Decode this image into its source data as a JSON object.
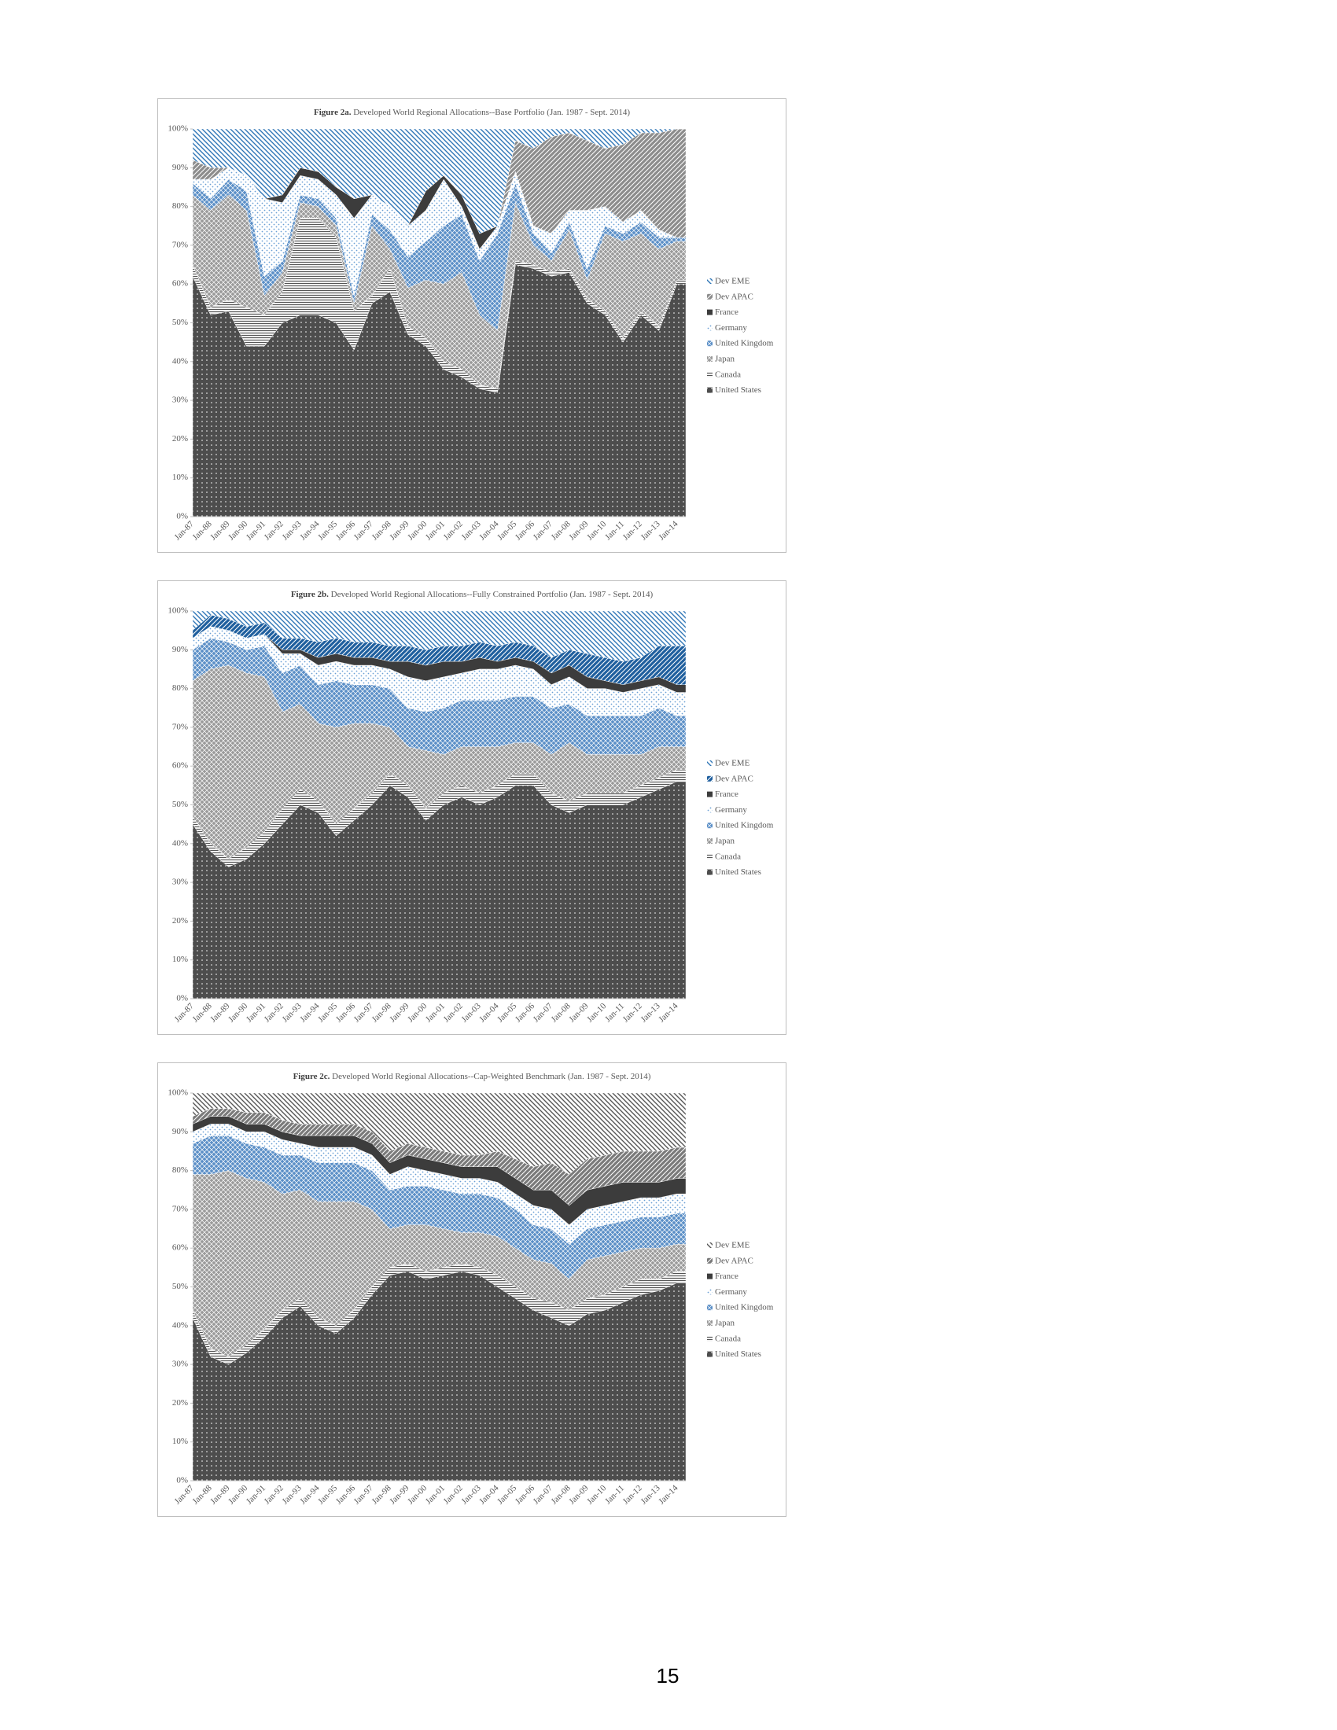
{
  "chart_data": [
    {
      "type": "area",
      "stacked": true,
      "figure": "Figure 2a.",
      "title": "Developed World Regional Allocations--Base Portfolio (Jan. 1987 - Sept. 2014)",
      "categories": [
        "Jan-87",
        "Jan-88",
        "Jan-89",
        "Jan-90",
        "Jan-91",
        "Jan-92",
        "Jan-93",
        "Jan-94",
        "Jan-95",
        "Jan-96",
        "Jan-97",
        "Jan-98",
        "Jan-99",
        "Jan-00",
        "Jan-01",
        "Jan-02",
        "Jan-03",
        "Jan-04",
        "Jan-05",
        "Jan-06",
        "Jan-07",
        "Jan-08",
        "Jan-09",
        "Jan-10",
        "Jan-11",
        "Jan-12",
        "Jan-13",
        "Jan-14"
      ],
      "series": [
        {
          "name": "United States",
          "color": "#4d4d4d",
          "values": [
            62,
            52,
            53,
            44,
            44,
            50,
            52,
            52,
            50,
            43,
            55,
            58,
            47,
            44,
            38,
            36,
            33,
            32,
            65,
            64,
            62,
            63,
            55,
            52,
            45,
            52,
            48,
            60
          ]
        },
        {
          "name": "Canada",
          "color": "#555555",
          "values": [
            3,
            2,
            3,
            10,
            8,
            8,
            25,
            25,
            22,
            10,
            2,
            6,
            2,
            2,
            2,
            2,
            1,
            1,
            1,
            1,
            1,
            1,
            1,
            1,
            1,
            1,
            1,
            1
          ]
        },
        {
          "name": "Japan",
          "color": "#9a9a9a",
          "values": [
            18,
            25,
            27,
            25,
            5,
            5,
            4,
            3,
            3,
            2,
            18,
            5,
            10,
            15,
            20,
            25,
            18,
            15,
            15,
            5,
            3,
            10,
            5,
            20,
            25,
            20,
            20,
            10
          ]
        },
        {
          "name": "United Kingdom",
          "color": "#5b8fc7",
          "values": [
            3,
            3,
            4,
            5,
            5,
            3,
            2,
            2,
            2,
            2,
            3,
            5,
            8,
            10,
            15,
            15,
            14,
            25,
            5,
            3,
            2,
            2,
            3,
            2,
            2,
            3,
            3,
            1
          ]
        },
        {
          "name": "Germany",
          "color": "#6a9fd4",
          "values": [
            1,
            5,
            3,
            4,
            20,
            15,
            5,
            5,
            6,
            20,
            5,
            6,
            8,
            8,
            12,
            2,
            3,
            2,
            3,
            2,
            5,
            3,
            15,
            5,
            3,
            3,
            2,
            0
          ]
        },
        {
          "name": "France",
          "color": "#3c3c3c",
          "values": [
            0,
            0,
            0,
            0,
            0,
            2,
            2,
            2,
            2,
            5,
            0,
            0,
            0,
            5,
            1,
            3,
            4,
            0,
            0,
            0,
            0,
            0,
            0,
            0,
            0,
            0,
            0,
            0
          ]
        },
        {
          "name": "Dev APAC",
          "color": "#8c8c8c",
          "values": [
            5,
            3,
            0,
            0,
            0,
            0,
            0,
            0,
            0,
            0,
            0,
            0,
            0,
            0,
            0,
            0,
            0,
            0,
            8,
            20,
            25,
            20,
            18,
            15,
            20,
            20,
            25,
            28
          ]
        },
        {
          "name": "Dev EME",
          "color": "#2e75b6",
          "values": [
            8,
            10,
            10,
            12,
            18,
            17,
            10,
            11,
            15,
            18,
            17,
            20,
            25,
            16,
            12,
            17,
            27,
            25,
            3,
            5,
            2,
            1,
            3,
            5,
            4,
            1,
            1,
            0
          ]
        }
      ],
      "ylim": [
        0,
        100
      ],
      "yticks": [
        {
          "value": 0,
          "label": "0%"
        },
        {
          "value": 10,
          "label": "10%"
        },
        {
          "value": 20,
          "label": "20%"
        },
        {
          "value": 30,
          "label": "30%"
        },
        {
          "value": 40,
          "label": "40%"
        },
        {
          "value": 50,
          "label": "50%"
        },
        {
          "value": 60,
          "label": "60%"
        },
        {
          "value": 70,
          "label": "70%"
        },
        {
          "value": 80,
          "label": "80%"
        },
        {
          "value": 90,
          "label": "90%"
        },
        {
          "value": 100,
          "label": "100%"
        }
      ]
    },
    {
      "type": "area",
      "stacked": true,
      "figure": "Figure 2b.",
      "title": "Developed World Regional Allocations--Fully Constrained Portfolio (Jan. 1987 - Sept. 2014)",
      "categories": [
        "Jan-87",
        "Jan-88",
        "Jan-89",
        "Jan-90",
        "Jan-91",
        "Jan-92",
        "Jan-93",
        "Jan-94",
        "Jan-95",
        "Jan-96",
        "Jan-97",
        "Jan-98",
        "Jan-99",
        "Jan-00",
        "Jan-01",
        "Jan-02",
        "Jan-03",
        "Jan-04",
        "Jan-05",
        "Jan-06",
        "Jan-07",
        "Jan-08",
        "Jan-09",
        "Jan-10",
        "Jan-11",
        "Jan-12",
        "Jan-13",
        "Jan-14"
      ],
      "series": [
        {
          "name": "United States",
          "color": "#4d4d4d",
          "values": [
            45,
            38,
            34,
            36,
            40,
            45,
            50,
            48,
            42,
            46,
            50,
            55,
            52,
            46,
            50,
            52,
            50,
            52,
            55,
            55,
            50,
            48,
            50,
            50,
            50,
            52,
            54,
            56
          ]
        },
        {
          "name": "Canada",
          "color": "#555555",
          "values": [
            2,
            2,
            2,
            3,
            3,
            4,
            4,
            3,
            3,
            3,
            3,
            3,
            3,
            3,
            3,
            3,
            3,
            3,
            3,
            3,
            3,
            3,
            3,
            3,
            3,
            3,
            3,
            3
          ]
        },
        {
          "name": "Japan",
          "color": "#9a9a9a",
          "values": [
            35,
            45,
            50,
            45,
            40,
            25,
            22,
            20,
            25,
            22,
            18,
            12,
            10,
            15,
            10,
            10,
            12,
            10,
            8,
            8,
            10,
            15,
            10,
            10,
            10,
            8,
            8,
            6
          ]
        },
        {
          "name": "United Kingdom",
          "color": "#5b8fc7",
          "values": [
            8,
            8,
            6,
            6,
            8,
            10,
            10,
            10,
            12,
            10,
            10,
            10,
            10,
            10,
            12,
            12,
            12,
            12,
            12,
            12,
            12,
            10,
            10,
            10,
            10,
            10,
            10,
            8
          ]
        },
        {
          "name": "Germany",
          "color": "#6a9fd4",
          "values": [
            3,
            3,
            3,
            3,
            3,
            5,
            3,
            5,
            5,
            5,
            5,
            5,
            8,
            8,
            8,
            7,
            8,
            8,
            8,
            7,
            6,
            7,
            7,
            7,
            6,
            7,
            6,
            6
          ]
        },
        {
          "name": "France",
          "color": "#3c3c3c",
          "values": [
            0,
            0,
            0,
            0,
            0,
            1,
            1,
            2,
            2,
            2,
            2,
            2,
            4,
            4,
            4,
            3,
            3,
            2,
            2,
            2,
            3,
            3,
            3,
            2,
            2,
            2,
            2,
            2
          ]
        },
        {
          "name": "Dev APAC",
          "color": "#1f5f9e",
          "values": [
            2,
            3,
            3,
            3,
            3,
            3,
            3,
            4,
            4,
            4,
            4,
            4,
            4,
            4,
            4,
            4,
            4,
            4,
            4,
            4,
            4,
            4,
            6,
            6,
            6,
            6,
            8,
            10
          ]
        },
        {
          "name": "Dev EME",
          "color": "#2e75b6",
          "values": [
            5,
            1,
            2,
            4,
            3,
            7,
            7,
            8,
            7,
            8,
            8,
            9,
            9,
            10,
            9,
            9,
            8,
            9,
            8,
            9,
            12,
            10,
            11,
            12,
            13,
            12,
            9,
            9
          ]
        }
      ],
      "ylim": [
        0,
        100
      ],
      "yticks": [
        {
          "value": 0,
          "label": "0%"
        },
        {
          "value": 10,
          "label": "10%"
        },
        {
          "value": 20,
          "label": "20%"
        },
        {
          "value": 30,
          "label": "30%"
        },
        {
          "value": 40,
          "label": "40%"
        },
        {
          "value": 50,
          "label": "50%"
        },
        {
          "value": 60,
          "label": "60%"
        },
        {
          "value": 70,
          "label": "70%"
        },
        {
          "value": 80,
          "label": "80%"
        },
        {
          "value": 90,
          "label": "90%"
        },
        {
          "value": 100,
          "label": "100%"
        }
      ]
    },
    {
      "type": "area",
      "stacked": true,
      "figure": "Figure 2c.",
      "title": "Developed World Regional Allocations--Cap-Weighted Benchmark (Jan. 1987 - Sept. 2014)",
      "categories": [
        "Jan-87",
        "Jan-88",
        "Jan-89",
        "Jan-90",
        "Jan-91",
        "Jan-92",
        "Jan-93",
        "Jan-94",
        "Jan-95",
        "Jan-96",
        "Jan-97",
        "Jan-98",
        "Jan-99",
        "Jan-00",
        "Jan-01",
        "Jan-02",
        "Jan-03",
        "Jan-04",
        "Jan-05",
        "Jan-06",
        "Jan-07",
        "Jan-08",
        "Jan-09",
        "Jan-10",
        "Jan-11",
        "Jan-12",
        "Jan-13",
        "Jan-14"
      ],
      "series": [
        {
          "name": "United States",
          "color": "#4d4d4d",
          "values": [
            42,
            32,
            30,
            33,
            37,
            42,
            45,
            40,
            38,
            42,
            48,
            53,
            54,
            52,
            53,
            54,
            53,
            50,
            47,
            44,
            42,
            40,
            43,
            44,
            46,
            48,
            49,
            51
          ]
        },
        {
          "name": "Canada",
          "color": "#555555",
          "values": [
            2,
            2,
            2,
            2,
            2,
            2,
            2,
            2,
            2,
            2,
            2,
            2,
            2,
            2,
            2,
            2,
            2,
            3,
            3,
            3,
            4,
            4,
            4,
            4,
            4,
            4,
            3,
            3
          ]
        },
        {
          "name": "Japan",
          "color": "#9a9a9a",
          "values": [
            35,
            45,
            48,
            43,
            38,
            30,
            28,
            30,
            32,
            28,
            20,
            10,
            10,
            12,
            10,
            8,
            9,
            10,
            10,
            10,
            10,
            8,
            10,
            10,
            9,
            8,
            8,
            7
          ]
        },
        {
          "name": "United Kingdom",
          "color": "#5b8fc7",
          "values": [
            8,
            10,
            9,
            9,
            9,
            10,
            9,
            10,
            10,
            10,
            10,
            10,
            10,
            10,
            10,
            10,
            10,
            10,
            10,
            9,
            9,
            9,
            8,
            8,
            8,
            8,
            8,
            8
          ]
        },
        {
          "name": "Germany",
          "color": "#6a9fd4",
          "values": [
            3,
            3,
            3,
            3,
            4,
            4,
            3,
            4,
            4,
            4,
            4,
            4,
            5,
            4,
            4,
            4,
            4,
            4,
            4,
            5,
            5,
            5,
            5,
            5,
            5,
            5,
            5,
            5
          ]
        },
        {
          "name": "France",
          "color": "#3c3c3c",
          "values": [
            2,
            2,
            2,
            2,
            2,
            2,
            2,
            3,
            3,
            3,
            3,
            3,
            3,
            3,
            3,
            3,
            3,
            4,
            4,
            4,
            5,
            5,
            5,
            5,
            5,
            4,
            4,
            4
          ]
        },
        {
          "name": "Dev APAC",
          "color": "#7a7a7a",
          "values": [
            2,
            2,
            2,
            3,
            3,
            3,
            3,
            3,
            3,
            3,
            3,
            3,
            3,
            3,
            3,
            3,
            3,
            4,
            5,
            6,
            7,
            8,
            8,
            8,
            8,
            8,
            8,
            8
          ]
        },
        {
          "name": "Dev EME",
          "color": "#555555",
          "values": [
            6,
            4,
            4,
            5,
            5,
            7,
            8,
            8,
            8,
            8,
            10,
            15,
            13,
            14,
            15,
            16,
            16,
            15,
            17,
            19,
            18,
            21,
            17,
            16,
            15,
            15,
            15,
            14
          ]
        }
      ],
      "ylim": [
        0,
        100
      ],
      "yticks": [
        {
          "value": 0,
          "label": "0%"
        },
        {
          "value": 10,
          "label": "10%"
        },
        {
          "value": 20,
          "label": "20%"
        },
        {
          "value": 30,
          "label": "30%"
        },
        {
          "value": 40,
          "label": "40%"
        },
        {
          "value": 50,
          "label": "50%"
        },
        {
          "value": 60,
          "label": "60%"
        },
        {
          "value": 70,
          "label": "70%"
        },
        {
          "value": 80,
          "label": "80%"
        },
        {
          "value": 90,
          "label": "90%"
        },
        {
          "value": 100,
          "label": "100%"
        }
      ]
    }
  ],
  "page_number": "15"
}
